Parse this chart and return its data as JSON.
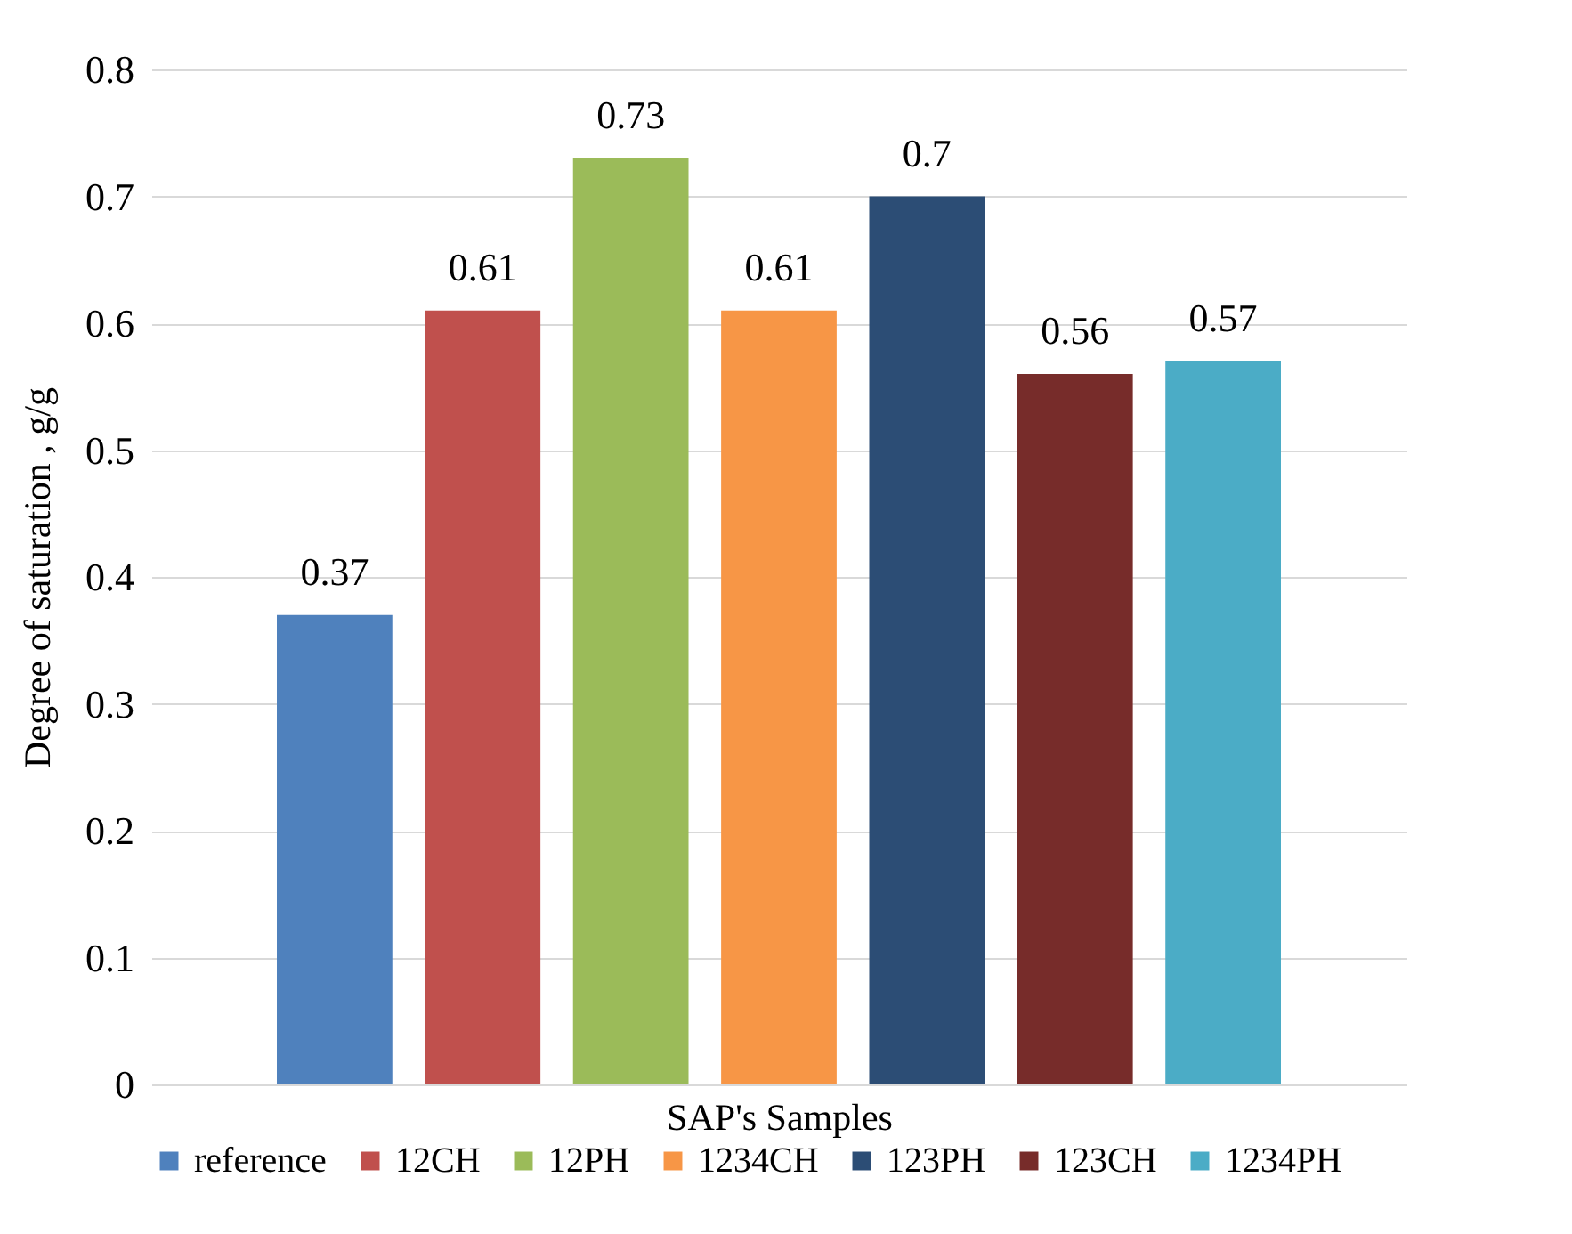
{
  "chart_data": {
    "type": "bar",
    "xlabel": "SAP's Samples",
    "ylabel": "Degree of saturation , g/g",
    "categories": [
      null
    ],
    "series": [
      {
        "name": "reference",
        "color": "#4f81bd",
        "values": [
          0.37
        ]
      },
      {
        "name": "12CH",
        "color": "#c0504d",
        "values": [
          0.61
        ]
      },
      {
        "name": "12PH",
        "color": "#9bbb59",
        "values": [
          0.73
        ]
      },
      {
        "name": "1234CH",
        "color": "#f79646",
        "values": [
          0.61
        ]
      },
      {
        "name": "123PH",
        "color": "#2c4d75",
        "values": [
          0.7
        ]
      },
      {
        "name": "123CH",
        "color": "#772c2a",
        "values": [
          0.56
        ]
      },
      {
        "name": "1234PH",
        "color": "#4bacc6",
        "values": [
          0.57
        ]
      }
    ],
    "ylim": [
      0,
      0.8
    ],
    "yticks": [
      0,
      0.1,
      0.2,
      0.3,
      0.4,
      0.5,
      0.6,
      0.7,
      0.8
    ],
    "grid": "y",
    "legend": "bottom",
    "data_labels": true
  }
}
